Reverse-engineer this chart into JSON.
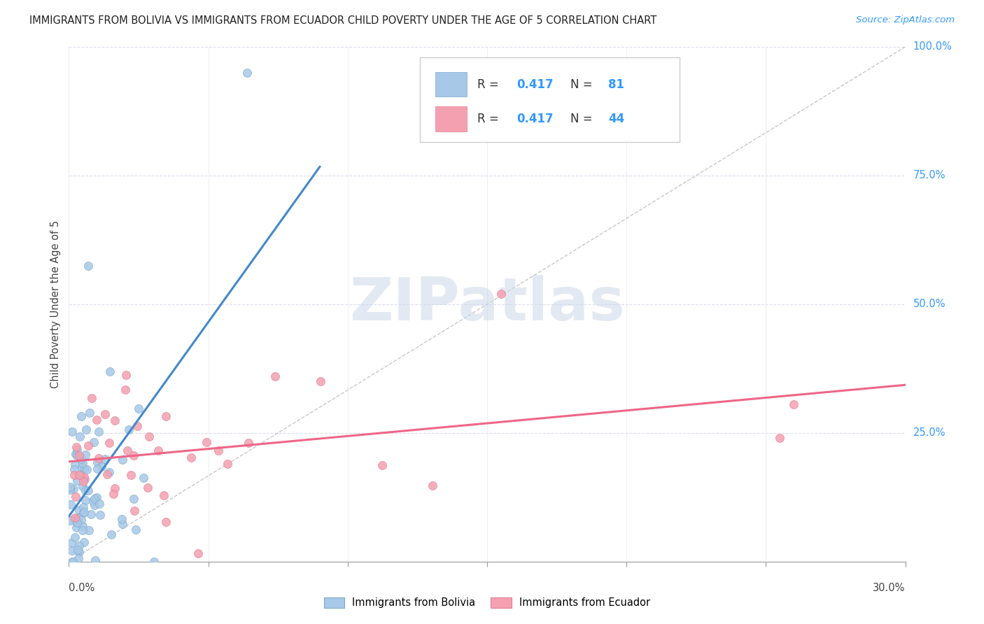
{
  "title": "IMMIGRANTS FROM BOLIVIA VS IMMIGRANTS FROM ECUADOR CHILD POVERTY UNDER THE AGE OF 5 CORRELATION CHART",
  "source": "Source: ZipAtlas.com",
  "ylabel": "Child Poverty Under the Age of 5",
  "bolivia_R": 0.417,
  "bolivia_N": 81,
  "ecuador_R": 0.417,
  "ecuador_N": 44,
  "bolivia_color": "#a8c8e8",
  "ecuador_color": "#f4a0b0",
  "bolivia_line_color": "#4488cc",
  "ecuador_line_color": "#ee6688",
  "ref_line_color": "#b0b0b0",
  "watermark_color": "#ccd8e8",
  "right_ytick_vals": [
    1.0,
    0.75,
    0.5,
    0.25
  ],
  "right_ytick_labels": [
    "100.0%",
    "75.0%",
    "50.0%",
    "25.0%"
  ],
  "xlim": [
    0,
    0.3
  ],
  "ylim": [
    0,
    1.0
  ]
}
